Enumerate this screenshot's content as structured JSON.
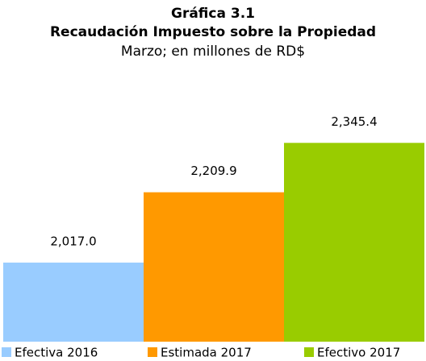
{
  "chart_data": {
    "type": "bar",
    "title": "Gráfica 3.1",
    "subtitle": "Recaudación Impuesto sobre la Propiedad",
    "note": "Marzo; en millones de RD$",
    "categories": [
      "Efectiva 2016",
      "Estimada 2017",
      "Efectivo 2017"
    ],
    "values": [
      2017.0,
      2209.9,
      2345.4
    ],
    "value_labels": [
      "2,017.0",
      "2,209.9",
      "2,345.4"
    ],
    "colors": [
      "#99ccff",
      "#ff9900",
      "#99cc00"
    ],
    "ylim": [
      1800,
      2450
    ],
    "legend": "bottom"
  }
}
